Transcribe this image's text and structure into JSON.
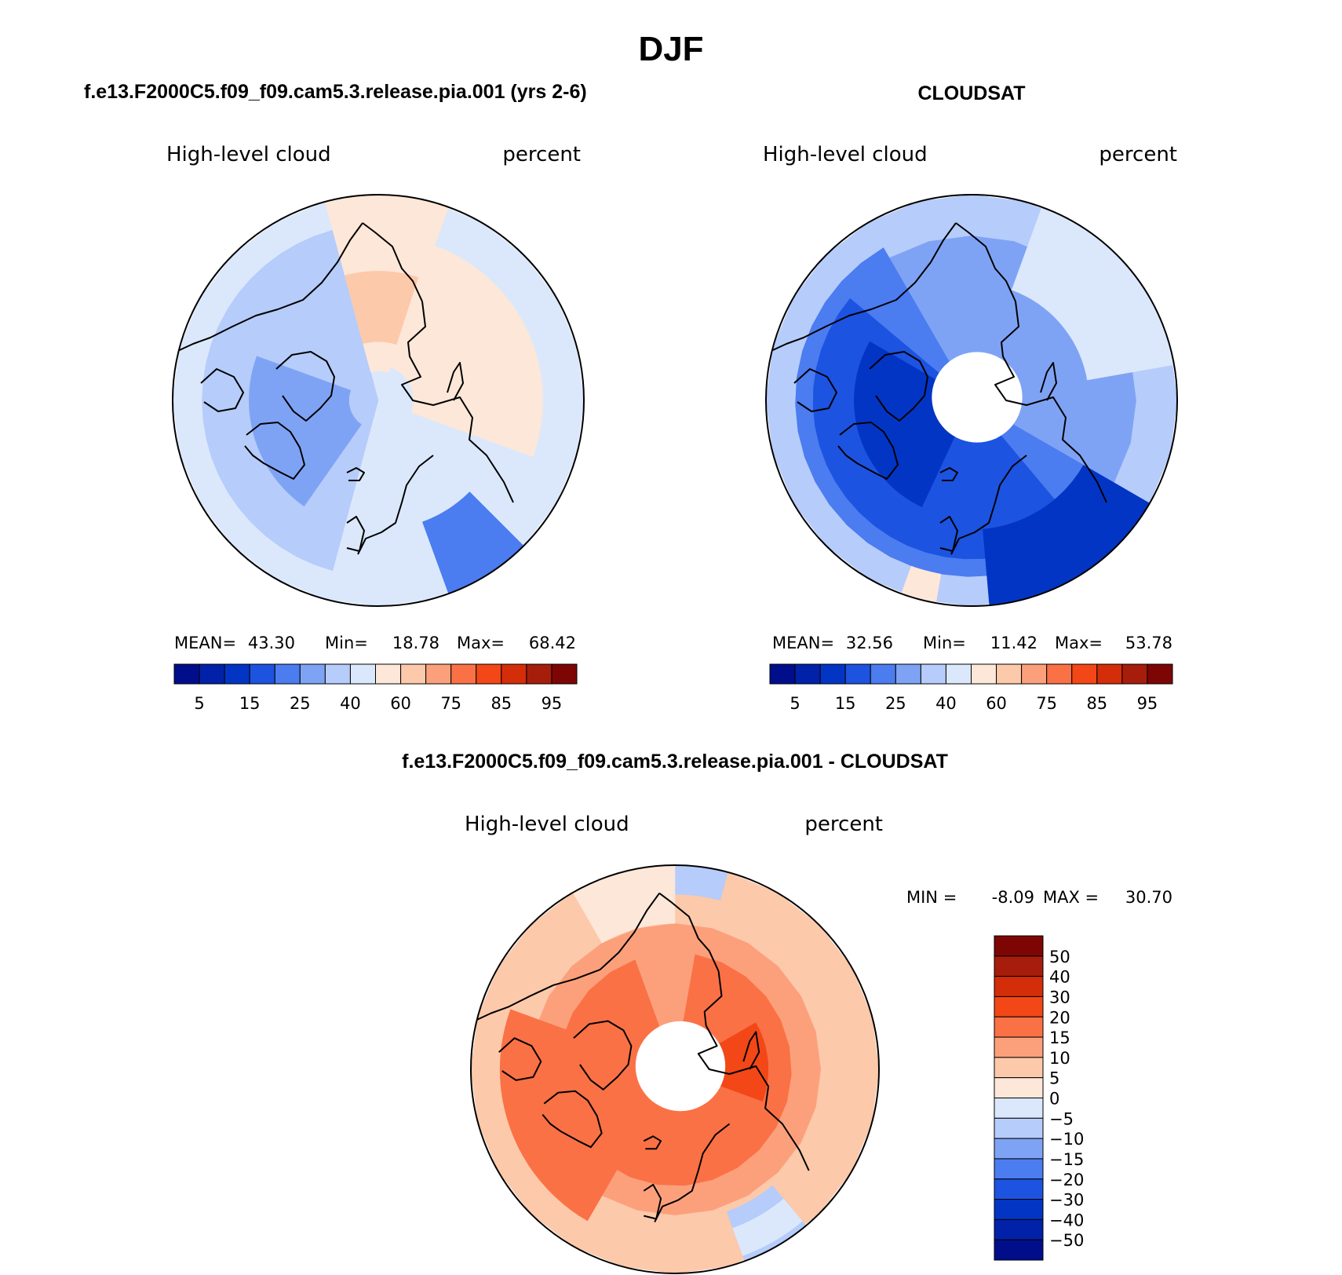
{
  "figure": {
    "title": "DJF"
  },
  "colors": {
    "sequential": [
      "#000e8b",
      "#0122a8",
      "#0335c5",
      "#1c53e1",
      "#4b7cf0",
      "#7fa3f4",
      "#b6ccfa",
      "#dbe8fc",
      "#fde7d8",
      "#fcc9aa",
      "#fca07c",
      "#fa7145",
      "#f34717",
      "#d42d09",
      "#a71d0b",
      "#7d0604"
    ],
    "difference": [
      "#000e8b",
      "#0122a8",
      "#0335c5",
      "#1c53e1",
      "#4b7cf0",
      "#7fa3f4",
      "#b6ccfa",
      "#dbe8fc",
      "#fde7d8",
      "#fcc9aa",
      "#fca07c",
      "#fa7145",
      "#f34717",
      "#d42d09",
      "#a71d0b",
      "#7d0604"
    ],
    "missing": "#ffffff",
    "coastline": "#000000"
  },
  "chart_data": [
    {
      "type": "heatmap",
      "projection": "polar-stereographic north",
      "panel_title": "f.e13.F2000C5.f09_f09.cam5.3.release.pia.001 (yrs 2-6)",
      "variable_label": "High-level cloud",
      "units_label": "percent",
      "stats": {
        "mean_label": "MEAN=",
        "mean": "43.30",
        "min_label": "Min=",
        "min": "18.78",
        "max_label": "Max=",
        "max": "68.42"
      },
      "colorbar_labels": [
        "5",
        "15",
        "25",
        "40",
        "60",
        "75",
        "85",
        "95"
      ],
      "contour_levels": [
        5,
        10,
        15,
        20,
        25,
        30,
        40,
        50,
        60,
        70,
        75,
        80,
        85,
        90,
        95
      ],
      "missing_polar_cap": false,
      "regions": [
        {
          "level_index": 7,
          "lon_start": 0,
          "lon_end": 360,
          "lat_start": 55,
          "lat_end": 90
        },
        {
          "level_index": 6,
          "lon_start": 195,
          "lon_end": 345,
          "lat_start": 60,
          "lat_end": 90
        },
        {
          "level_index": 5,
          "lon_start": 215,
          "lon_end": 290,
          "lat_start": 68,
          "lat_end": 85
        },
        {
          "level_index": 4,
          "lon_start": 135,
          "lon_end": 160,
          "lat_start": 55,
          "lat_end": 68
        },
        {
          "level_index": 8,
          "lon_start": 345,
          "lon_end": 380,
          "lat_start": 55,
          "lat_end": 85
        },
        {
          "level_index": 8,
          "lon_start": 20,
          "lon_end": 110,
          "lat_start": 62,
          "lat_end": 84
        },
        {
          "level_index": 9,
          "lon_start": 345,
          "lon_end": 378,
          "lat_start": 68,
          "lat_end": 80
        }
      ]
    },
    {
      "type": "heatmap",
      "projection": "polar-stereographic north",
      "panel_title": "CLOUDSAT",
      "variable_label": "High-level cloud",
      "units_label": "percent",
      "stats": {
        "mean_label": "MEAN=",
        "mean": "32.56",
        "min_label": "Min=",
        "min": "11.42",
        "max_label": "Max=",
        "max": "53.78"
      },
      "colorbar_labels": [
        "5",
        "15",
        "25",
        "40",
        "60",
        "75",
        "85",
        "95"
      ],
      "contour_levels": [
        5,
        10,
        15,
        20,
        25,
        30,
        40,
        50,
        60,
        70,
        75,
        80,
        85,
        90,
        95
      ],
      "missing_polar_cap": true,
      "regions": [
        {
          "level_index": 6,
          "lon_start": 0,
          "lon_end": 360,
          "lat_start": 55,
          "lat_end": 90
        },
        {
          "level_index": 5,
          "lon_start": 0,
          "lon_end": 360,
          "lat_start": 62,
          "lat_end": 90
        },
        {
          "level_index": 4,
          "lon_start": 120,
          "lon_end": 330,
          "lat_start": 60,
          "lat_end": 90
        },
        {
          "level_index": 3,
          "lon_start": 140,
          "lon_end": 310,
          "lat_start": 63,
          "lat_end": 90
        },
        {
          "level_index": 2,
          "lon_start": 205,
          "lon_end": 300,
          "lat_start": 70,
          "lat_end": 90
        },
        {
          "level_index": 2,
          "lon_start": 120,
          "lon_end": 175,
          "lat_start": 55,
          "lat_end": 68
        },
        {
          "level_index": 7,
          "lon_start": 20,
          "lon_end": 80,
          "lat_start": 55,
          "lat_end": 70
        },
        {
          "level_index": 8,
          "lon_start": 190,
          "lon_end": 200,
          "lat_start": 55,
          "lat_end": 60
        }
      ]
    },
    {
      "type": "heatmap",
      "projection": "polar-stereographic north",
      "panel_title": "f.e13.F2000C5.f09_f09.cam5.3.release.pia.001 - CLOUDSAT",
      "variable_label": "High-level cloud",
      "units_label": "percent",
      "stats": {
        "min_label": "MIN =",
        "min": "-8.09",
        "max_label": "MAX =",
        "max": "30.70"
      },
      "colorbar_labels": [
        "50",
        "40",
        "30",
        "20",
        "15",
        "10",
        "5",
        "0",
        "−5",
        "−10",
        "−15",
        "−20",
        "−30",
        "−40",
        "−50"
      ],
      "contour_levels": [
        -50,
        -40,
        -30,
        -20,
        -15,
        -10,
        -5,
        0,
        5,
        10,
        15,
        20,
        30,
        40,
        50
      ],
      "missing_polar_cap": true,
      "regions": [
        {
          "level_index": 9,
          "lon_start": 0,
          "lon_end": 360,
          "lat_start": 55,
          "lat_end": 90
        },
        {
          "level_index": 10,
          "lon_start": 0,
          "lon_end": 360,
          "lat_start": 65,
          "lat_end": 90
        },
        {
          "level_index": 11,
          "lon_start": 10,
          "lon_end": 340,
          "lat_start": 70,
          "lat_end": 90
        },
        {
          "level_index": 12,
          "lon_start": 60,
          "lon_end": 110,
          "lat_start": 74,
          "lat_end": 90
        },
        {
          "level_index": 11,
          "lon_start": 210,
          "lon_end": 290,
          "lat_start": 60,
          "lat_end": 75
        },
        {
          "level_index": 6,
          "lon_start": 140,
          "lon_end": 160,
          "lat_start": 55,
          "lat_end": 64
        },
        {
          "level_index": 7,
          "lon_start": 140,
          "lon_end": 160,
          "lat_start": 56,
          "lat_end": 61
        },
        {
          "level_index": 6,
          "lon_start": 0,
          "lon_end": 15,
          "lat_start": 55,
          "lat_end": 60
        },
        {
          "level_index": 8,
          "lon_start": 330,
          "lon_end": 360,
          "lat_start": 55,
          "lat_end": 65
        }
      ]
    }
  ]
}
